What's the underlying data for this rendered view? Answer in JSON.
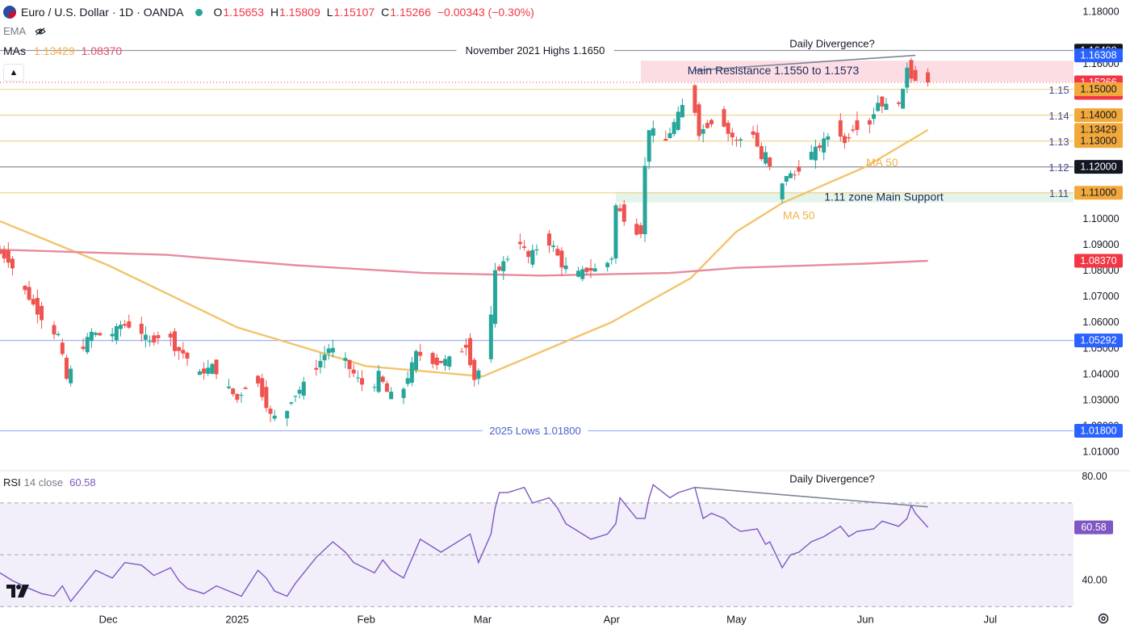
{
  "header": {
    "title": "Euro / U.S. Dollar · 1D · OANDA",
    "open_label": "O",
    "open": "1.15653",
    "high_label": "H",
    "high": "1.15809",
    "low_label": "L",
    "low": "1.15107",
    "close_label": "C",
    "close": "1.15266",
    "change": "−0.00343 (−0.30%)",
    "ema_label": "EMA",
    "mas_label": "MAs",
    "ma50_value": "1.13429",
    "ma200_value": "1.08370",
    "collapse_icon": "chevron-up-icon"
  },
  "rsi_header": {
    "name": "RSI",
    "params": "14 close",
    "value": "60.58"
  },
  "colors": {
    "up": "#26a69a",
    "down": "#ef5350",
    "ma50": "#f2c46d",
    "ma200": "#e88a9e",
    "rsi": "#7e57c2",
    "fib_level": "#f4d58d",
    "resistance_zone": "#fbdde3",
    "support_zone": "#e4f4ea",
    "label_blue": "#2962ff",
    "label_dark": "#131722",
    "label_amber": "#f2a93b",
    "label_red": "#f23645",
    "label_purple": "#7e57c2"
  },
  "chart_data": [
    {
      "type": "candlestick",
      "title": "Euro / U.S. Dollar · 1D · OANDA",
      "x_ticks": [
        "Dec",
        "2025",
        "Feb",
        "Mar",
        "Apr",
        "May",
        "Jun",
        "Jul"
      ],
      "x_tick_dates": [
        "2024-12-01",
        "2025-01-01",
        "2025-02-01",
        "2025-03-01",
        "2025-04-01",
        "2025-05-01",
        "2025-06-01",
        "2025-07-01"
      ],
      "y_ticks": [
        "1.18000",
        "1.16000",
        "1.10000",
        "1.09000",
        "1.08000",
        "1.07000",
        "1.06000",
        "1.05000",
        "1.04000",
        "1.03000",
        "1.02000",
        "1.01000"
      ],
      "ylim": [
        1.0035,
        1.1845
      ],
      "x_range": [
        "2024-11-05",
        "2025-07-21"
      ],
      "last_bar": {
        "date": "2025-06-16",
        "open": 1.15653,
        "high": 1.15809,
        "low": 1.15107,
        "close": 1.15266
      },
      "series_path": {
        "name": "EUR/USD",
        "points": [
          [
            "2024-11-05",
            1.0877
          ],
          [
            "2024-11-08",
            1.084
          ],
          [
            "2024-11-12",
            1.072
          ],
          [
            "2024-11-15",
            1.064
          ],
          [
            "2024-11-18",
            1.057
          ],
          [
            "2024-11-20",
            1.055
          ],
          [
            "2024-11-22",
            1.038
          ],
          [
            "2024-11-25",
            1.048
          ],
          [
            "2024-11-28",
            1.056
          ],
          [
            "2024-12-02",
            1.054
          ],
          [
            "2024-12-05",
            1.059
          ],
          [
            "2024-12-09",
            1.058
          ],
          [
            "2024-12-12",
            1.052
          ],
          [
            "2024-12-16",
            1.057
          ],
          [
            "2024-12-18",
            1.05
          ],
          [
            "2024-12-20",
            1.048
          ],
          [
            "2024-12-24",
            1.04
          ],
          [
            "2024-12-27",
            1.043
          ],
          [
            "2025-01-02",
            1.03
          ],
          [
            "2025-01-06",
            1.04
          ],
          [
            "2025-01-08",
            1.032
          ],
          [
            "2025-01-10",
            1.024
          ],
          [
            "2025-01-13",
            1.022
          ],
          [
            "2025-01-15",
            1.03
          ],
          [
            "2025-01-20",
            1.04
          ],
          [
            "2025-01-24",
            1.05
          ],
          [
            "2025-01-27",
            1.048
          ],
          [
            "2025-01-29",
            1.042
          ],
          [
            "2025-02-03",
            1.032
          ],
          [
            "2025-02-05",
            1.04
          ],
          [
            "2025-02-07",
            1.033
          ],
          [
            "2025-02-10",
            1.03
          ],
          [
            "2025-02-14",
            1.048
          ],
          [
            "2025-02-19",
            1.044
          ],
          [
            "2025-02-24",
            1.047
          ],
          [
            "2025-02-26",
            1.051
          ],
          [
            "2025-02-28",
            1.038
          ],
          [
            "2025-03-03",
            1.048
          ],
          [
            "2025-03-04",
            1.062
          ],
          [
            "2025-03-05",
            1.079
          ],
          [
            "2025-03-07",
            1.083
          ],
          [
            "2025-03-11",
            1.091
          ],
          [
            "2025-03-13",
            1.085
          ],
          [
            "2025-03-17",
            1.092
          ],
          [
            "2025-03-19",
            1.089
          ],
          [
            "2025-03-21",
            1.082
          ],
          [
            "2025-03-25",
            1.079
          ],
          [
            "2025-03-27",
            1.08
          ],
          [
            "2025-03-31",
            1.081
          ],
          [
            "2025-04-02",
            1.085
          ],
          [
            "2025-04-03",
            1.105
          ],
          [
            "2025-04-07",
            1.095
          ],
          [
            "2025-04-09",
            1.095
          ],
          [
            "2025-04-10",
            1.12
          ],
          [
            "2025-04-11",
            1.135
          ],
          [
            "2025-04-15",
            1.13
          ],
          [
            "2025-04-17",
            1.137
          ],
          [
            "2025-04-21",
            1.15
          ],
          [
            "2025-04-23",
            1.133
          ],
          [
            "2025-04-25",
            1.136
          ],
          [
            "2025-04-28",
            1.14
          ],
          [
            "2025-04-30",
            1.133
          ],
          [
            "2025-05-02",
            1.13
          ],
          [
            "2025-05-06",
            1.133
          ],
          [
            "2025-05-08",
            1.123
          ],
          [
            "2025-05-09",
            1.125
          ],
          [
            "2025-05-12",
            1.109
          ],
          [
            "2025-05-14",
            1.117
          ],
          [
            "2025-05-16",
            1.117
          ],
          [
            "2025-05-19",
            1.124
          ],
          [
            "2025-05-22",
            1.128
          ],
          [
            "2025-05-26",
            1.136
          ],
          [
            "2025-05-28",
            1.129
          ],
          [
            "2025-05-30",
            1.135
          ],
          [
            "2025-06-03",
            1.137
          ],
          [
            "2025-06-05",
            1.145
          ],
          [
            "2025-06-09",
            1.142
          ],
          [
            "2025-06-11",
            1.149
          ],
          [
            "2025-06-12",
            1.159
          ],
          [
            "2025-06-13",
            1.155
          ],
          [
            "2025-06-16",
            1.1527
          ]
        ]
      },
      "moving_averages": [
        {
          "name": "MA 50",
          "value": 1.13429,
          "points": [
            [
              "2024-11-05",
              1.099
            ],
            [
              "2024-12-01",
              1.082
            ],
            [
              "2025-01-01",
              1.058
            ],
            [
              "2025-02-01",
              1.043
            ],
            [
              "2025-03-01",
              1.039
            ],
            [
              "2025-04-01",
              1.06
            ],
            [
              "2025-04-20",
              1.077
            ],
            [
              "2025-05-01",
              1.095
            ],
            [
              "2025-05-12",
              1.106
            ],
            [
              "2025-06-01",
              1.12
            ],
            [
              "2025-06-16",
              1.1343
            ]
          ]
        },
        {
          "name": "",
          "value": 1.0837,
          "points": [
            [
              "2024-11-05",
              1.088
            ],
            [
              "2024-12-15",
              1.086
            ],
            [
              "2025-01-15",
              1.082
            ],
            [
              "2025-02-15",
              1.079
            ],
            [
              "2025-03-15",
              1.078
            ],
            [
              "2025-04-15",
              1.079
            ],
            [
              "2025-05-01",
              1.081
            ],
            [
              "2025-06-01",
              1.0826
            ],
            [
              "2025-06-16",
              1.0837
            ]
          ]
        }
      ],
      "horizontal_levels": [
        {
          "value": 1.165,
          "label": "November 2021 Highs 1.1650",
          "style": "gray"
        },
        {
          "value": 1.15,
          "label": "1.15",
          "style": "fib"
        },
        {
          "value": 1.14,
          "label": "1.14",
          "style": "fib"
        },
        {
          "value": 1.13,
          "label": "1.13",
          "style": "fib"
        },
        {
          "value": 1.12,
          "label": "1.12",
          "style": "gray"
        },
        {
          "value": 1.11,
          "label": "1.11",
          "style": "fib"
        },
        {
          "value": 1.05292,
          "label": "",
          "style": "blue"
        },
        {
          "value": 1.018,
          "label": "2025 Lows 1.01800",
          "style": "blue"
        }
      ],
      "zones": [
        {
          "label": "Main Resistance 1.1550 to 1.1573",
          "from": 1.155,
          "to": 1.1573,
          "start": "2025-04-08",
          "kind": "resistance"
        },
        {
          "label": "1.11 zone Main Support",
          "from": 1.107,
          "to": 1.11,
          "start": "2025-04-02",
          "kind": "support"
        }
      ],
      "annotations": [
        {
          "text": "Daily Divergence?",
          "date": "2025-05-24",
          "y": 1.1673
        },
        {
          "text": "MA 50",
          "date": "2025-06-05",
          "y": 1.1213
        },
        {
          "text": "MA 50",
          "date": "2025-05-16",
          "y": 1.101
        }
      ],
      "divergence_line": {
        "from": [
          "2025-04-21",
          1.1573
        ],
        "to": [
          "2025-06-13",
          1.1631
        ]
      },
      "price_scale_labels": [
        {
          "text": "1.16490",
          "value": 1.1649,
          "bg": "#131722",
          "fg": "#ffffff"
        },
        {
          "text": "1.16308",
          "value": 1.16308,
          "bg": "#2962ff",
          "fg": "#ffffff"
        },
        {
          "text": "1.15266",
          "sub": "06:00:11",
          "value": 1.15266,
          "bg": "#f23645",
          "fg": "#ffffff"
        },
        {
          "text": "1.15000",
          "value": 1.15,
          "bg": "#f2a93b",
          "fg": "#131722"
        },
        {
          "text": "1.14000",
          "value": 1.14,
          "bg": "#f2a93b",
          "fg": "#131722"
        },
        {
          "text": "1.13429",
          "value": 1.13429,
          "bg": "#f2a93b",
          "fg": "#131722"
        },
        {
          "text": "1.13000",
          "value": 1.13,
          "bg": "#f2a93b",
          "fg": "#131722"
        },
        {
          "text": "1.12000",
          "value": 1.12,
          "bg": "#131722",
          "fg": "#ffffff"
        },
        {
          "text": "1.11000",
          "value": 1.11,
          "bg": "#f2a93b",
          "fg": "#131722"
        },
        {
          "text": "1.08370",
          "value": 1.0837,
          "bg": "#f23645",
          "fg": "#ffffff"
        },
        {
          "text": "1.05292",
          "value": 1.05292,
          "bg": "#2962ff",
          "fg": "#ffffff"
        },
        {
          "text": "1.01800",
          "value": 1.018,
          "bg": "#2962ff",
          "fg": "#ffffff"
        }
      ]
    },
    {
      "type": "line",
      "title": "RSI 14 close",
      "ylim": [
        33.5,
        81.5
      ],
      "y_ticks": [
        "80.00",
        "40.00"
      ],
      "bands": [
        70,
        50,
        30
      ],
      "current_value": 60.58,
      "points": [
        [
          "2024-11-05",
          43
        ],
        [
          "2024-11-08",
          40
        ],
        [
          "2024-11-12",
          37
        ],
        [
          "2024-11-15",
          35
        ],
        [
          "2024-11-18",
          34
        ],
        [
          "2024-11-20",
          38
        ],
        [
          "2024-11-22",
          32
        ],
        [
          "2024-11-25",
          38
        ],
        [
          "2024-11-28",
          44
        ],
        [
          "2024-12-02",
          41
        ],
        [
          "2024-12-05",
          47
        ],
        [
          "2024-12-09",
          46
        ],
        [
          "2024-12-12",
          42
        ],
        [
          "2024-12-16",
          45
        ],
        [
          "2024-12-18",
          40
        ],
        [
          "2024-12-20",
          37
        ],
        [
          "2024-12-24",
          35
        ],
        [
          "2024-12-27",
          38
        ],
        [
          "2025-01-02",
          34
        ],
        [
          "2025-01-06",
          44
        ],
        [
          "2025-01-08",
          41
        ],
        [
          "2025-01-10",
          36
        ],
        [
          "2025-01-13",
          34
        ],
        [
          "2025-01-15",
          39
        ],
        [
          "2025-01-20",
          49
        ],
        [
          "2025-01-24",
          55
        ],
        [
          "2025-01-27",
          51
        ],
        [
          "2025-01-29",
          47
        ],
        [
          "2025-02-03",
          43
        ],
        [
          "2025-02-05",
          48
        ],
        [
          "2025-02-07",
          44
        ],
        [
          "2025-02-10",
          41
        ],
        [
          "2025-02-14",
          56
        ],
        [
          "2025-02-19",
          51
        ],
        [
          "2025-02-24",
          56
        ],
        [
          "2025-02-26",
          58
        ],
        [
          "2025-02-28",
          47
        ],
        [
          "2025-03-03",
          58
        ],
        [
          "2025-03-04",
          68
        ],
        [
          "2025-03-05",
          74
        ],
        [
          "2025-03-07",
          74
        ],
        [
          "2025-03-11",
          76
        ],
        [
          "2025-03-13",
          70
        ],
        [
          "2025-03-17",
          72
        ],
        [
          "2025-03-19",
          68
        ],
        [
          "2025-03-21",
          62
        ],
        [
          "2025-03-25",
          58
        ],
        [
          "2025-03-27",
          56
        ],
        [
          "2025-03-31",
          58
        ],
        [
          "2025-04-02",
          62
        ],
        [
          "2025-04-03",
          72
        ],
        [
          "2025-04-07",
          64
        ],
        [
          "2025-04-09",
          64
        ],
        [
          "2025-04-10",
          72
        ],
        [
          "2025-04-11",
          77
        ],
        [
          "2025-04-15",
          72
        ],
        [
          "2025-04-17",
          74
        ],
        [
          "2025-04-21",
          76
        ],
        [
          "2025-04-23",
          64
        ],
        [
          "2025-04-25",
          66
        ],
        [
          "2025-04-28",
          64
        ],
        [
          "2025-04-30",
          61
        ],
        [
          "2025-05-02",
          59
        ],
        [
          "2025-05-06",
          60
        ],
        [
          "2025-05-08",
          54
        ],
        [
          "2025-05-09",
          55
        ],
        [
          "2025-05-12",
          45
        ],
        [
          "2025-05-14",
          50
        ],
        [
          "2025-05-16",
          51
        ],
        [
          "2025-05-19",
          55
        ],
        [
          "2025-05-22",
          57
        ],
        [
          "2025-05-26",
          61
        ],
        [
          "2025-05-28",
          57
        ],
        [
          "2025-05-30",
          59
        ],
        [
          "2025-06-03",
          60
        ],
        [
          "2025-06-05",
          63
        ],
        [
          "2025-06-09",
          61
        ],
        [
          "2025-06-11",
          64
        ],
        [
          "2025-06-12",
          69
        ],
        [
          "2025-06-13",
          66
        ],
        [
          "2025-06-16",
          60.58
        ]
      ],
      "divergence_line": {
        "from": [
          "2025-04-21",
          76
        ],
        "to": [
          "2025-06-16",
          68.5
        ]
      },
      "annotations": [
        {
          "text": "Daily Divergence?",
          "date": "2025-05-24",
          "y": 79
        }
      ]
    }
  ]
}
